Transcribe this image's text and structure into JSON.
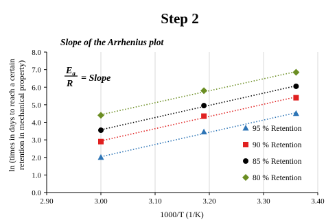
{
  "chart_data": {
    "type": "scatter",
    "heading": "Step 2",
    "title": "Slope of the Arrhenius plot",
    "equation": {
      "numerator": "E",
      "numerator_subscript": "a",
      "denominator": "R",
      "rhs": "= Slope"
    },
    "xlabel": "1000/T (1/K)",
    "ylabel_lines": [
      "ln (times in days to reach a certain",
      "retention in mechanical property)"
    ],
    "xlim": [
      2.9,
      3.4
    ],
    "ylim": [
      0.0,
      8.0
    ],
    "x_ticks": [
      "2.90",
      "3.00",
      "3.10",
      "3.20",
      "3.30",
      "3.40"
    ],
    "y_ticks": [
      "0.0",
      "1.0",
      "2.0",
      "3.0",
      "4.0",
      "5.0",
      "6.0",
      "7.0",
      "8.0"
    ],
    "grid": "vertical",
    "legend_position": "bottom-right",
    "trendlines": "dotted linear",
    "x": [
      3.0,
      3.19,
      3.36
    ],
    "series": [
      {
        "name": "95 % Retention",
        "values": [
          2.0,
          3.45,
          4.5
        ],
        "color": "#2e75b6",
        "marker": "triangle"
      },
      {
        "name": "90 % Retention",
        "values": [
          2.9,
          4.35,
          5.4
        ],
        "color": "#e02020",
        "marker": "square"
      },
      {
        "name": "85 % Retention",
        "values": [
          3.55,
          4.95,
          6.05
        ],
        "color": "#000000",
        "marker": "circle"
      },
      {
        "name": "80 % Retention",
        "values": [
          4.4,
          5.8,
          6.85
        ],
        "color": "#6b8e23",
        "marker": "diamond"
      }
    ]
  }
}
